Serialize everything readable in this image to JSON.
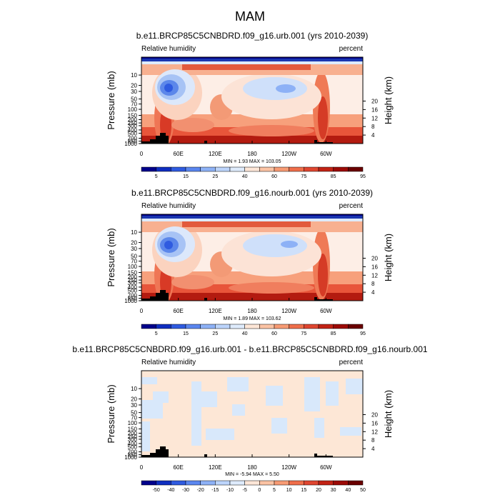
{
  "figure": {
    "title": "MAM"
  },
  "colors": {
    "abs_bar": [
      "#00008b",
      "#0f2ec0",
      "#2f5be0",
      "#5a86ef",
      "#8db1f6",
      "#bcd4fb",
      "#deebfc",
      "#fde6d7",
      "#fbc3a4",
      "#f79b74",
      "#ef6e4a",
      "#df4630",
      "#c22315",
      "#9c0a06",
      "#6a0000"
    ],
    "diff_bar": [
      "#00008b",
      "#0f2ec0",
      "#2f5be0",
      "#5a86ef",
      "#8db1f6",
      "#bcd4fb",
      "#deebfc",
      "#fde6d7",
      "#fbc3a4",
      "#f79b74",
      "#ef6e4a",
      "#df4630",
      "#c22315",
      "#9c0a06",
      "#6a0000"
    ],
    "diff_neg": "#d8e8fb",
    "diff_pos": "#fde7d6",
    "topography": "#000000"
  },
  "chart_data": [
    {
      "type": "heatmap",
      "title": "b.e11.BRCP85C5CNBDRD.f09_g16.urb.001 (yrs 2010-2039)",
      "left_label": "Relative humidity",
      "right_label": "percent",
      "ylabel": "Pressure (mb)",
      "y2label": "Height (km)",
      "xlim": [
        0,
        360
      ],
      "ylim": [
        1000,
        3
      ],
      "x_ticks": [
        "0",
        "60E",
        "120E",
        "180",
        "120W",
        "60W"
      ],
      "y_ticks": [
        "1000",
        "850",
        "700",
        "500",
        "400",
        "300",
        "250",
        "200",
        "150",
        "100",
        "70",
        "50",
        "30",
        "20",
        "10"
      ],
      "y2_ticks": [
        "4",
        "8",
        "12",
        "16",
        "20"
      ],
      "min_max": "MIN =   1.93  MAX = 103.05",
      "levels": [
        "5",
        "15",
        "25",
        "40",
        "60",
        "75",
        "85",
        "95"
      ],
      "scale": "abs"
    },
    {
      "type": "heatmap",
      "title": "b.e11.BRCP85C5CNBDRD.f09_g16.nourb.001 (yrs 2010-2039)",
      "left_label": "Relative humidity",
      "right_label": "percent",
      "ylabel": "Pressure (mb)",
      "y2label": "Height (km)",
      "xlim": [
        0,
        360
      ],
      "ylim": [
        1000,
        3
      ],
      "x_ticks": [
        "0",
        "60E",
        "120E",
        "180",
        "120W",
        "60W"
      ],
      "y_ticks": [
        "1000",
        "850",
        "700",
        "500",
        "400",
        "300",
        "250",
        "200",
        "150",
        "100",
        "70",
        "50",
        "30",
        "20",
        "10"
      ],
      "y2_ticks": [
        "4",
        "8",
        "12",
        "16",
        "20"
      ],
      "min_max": "MIN =   1.89  MAX = 103.62",
      "levels": [
        "5",
        "15",
        "25",
        "40",
        "60",
        "75",
        "85",
        "95"
      ],
      "scale": "abs"
    },
    {
      "type": "heatmap",
      "title": "b.e11.BRCP85C5CNBDRD.f09_g16.urb.001 - b.e11.BRCP85C5CNBDRD.f09_g16.nourb.001",
      "left_label": "Relative humidity",
      "right_label": "percent",
      "ylabel": "Pressure (mb)",
      "y2label": "Height (km)",
      "xlim": [
        0,
        360
      ],
      "ylim": [
        1000,
        3
      ],
      "x_ticks": [
        "0",
        "60E",
        "120E",
        "180",
        "120W",
        "60W"
      ],
      "y_ticks": [
        "1000",
        "850",
        "700",
        "500",
        "400",
        "300",
        "250",
        "200",
        "150",
        "100",
        "70",
        "50",
        "30",
        "20",
        "10"
      ],
      "y2_ticks": [
        "4",
        "8",
        "12",
        "16",
        "20"
      ],
      "min_max": "MIN =  -5.94  MAX =   5.50",
      "levels": [
        "-50",
        "-40",
        "-30",
        "-20",
        "-15",
        "-10",
        "-5",
        "0",
        "5",
        "10",
        "15",
        "20",
        "30",
        "40",
        "50"
      ],
      "scale": "diff"
    }
  ]
}
